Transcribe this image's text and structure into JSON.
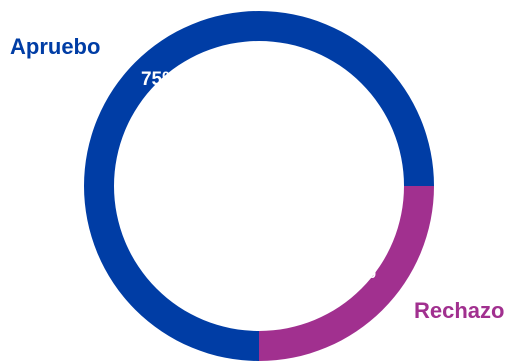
{
  "chart_data": {
    "type": "pie",
    "style": "donut",
    "categories": [
      "Apruebo",
      "Rechazo"
    ],
    "values": [
      75,
      25
    ],
    "percent_labels": [
      "75%",
      "25%"
    ],
    "colors": [
      "#003DA5",
      "#A1308F"
    ],
    "legend": "inline category labels outside ring"
  }
}
